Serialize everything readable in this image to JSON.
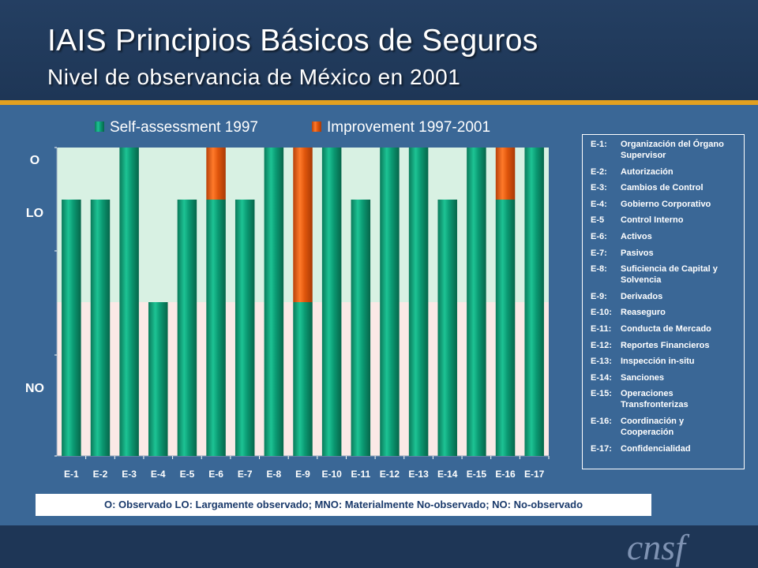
{
  "header": {
    "title": "IAIS Principios Básicos de Seguros",
    "subtitle": "Nivel de observancia de México en 2001"
  },
  "chart_data": {
    "type": "bar",
    "stacked": true,
    "categories": [
      "E-1",
      "E-2",
      "E-3",
      "E-4",
      "E-5",
      "E-6",
      "E-7",
      "E-8",
      "E-9",
      "E-10",
      "E-11",
      "E-12",
      "E-13",
      "E-14",
      "E-15",
      "E-16",
      "E-17"
    ],
    "series": [
      {
        "name": "Self-assessment 1997",
        "color": "#0b9a73",
        "values": [
          2,
          2,
          3,
          1,
          2,
          2,
          2,
          3,
          1,
          3,
          2,
          3,
          3,
          2,
          3,
          2,
          3
        ]
      },
      {
        "name": "Improvement 1997-2001",
        "color": "#e0560c",
        "values": [
          0,
          0,
          0,
          0,
          0,
          1,
          0,
          0,
          2,
          0,
          0,
          0,
          0,
          0,
          0,
          1,
          0
        ]
      }
    ],
    "y_levels": [
      "NO",
      "LO",
      "O"
    ],
    "ylim": [
      0,
      3
    ],
    "legend": "top",
    "grid": false
  },
  "principles_legend": [
    {
      "code": "E-1:",
      "label": "Organización del Órgano Supervisor"
    },
    {
      "code": "E-2:",
      "label": "Autorización"
    },
    {
      "code": "E-3:",
      "label": "Cambios de Control"
    },
    {
      "code": "E-4:",
      "label": "Gobierno Corporativo"
    },
    {
      "code": "E-5",
      "label": "Control Interno"
    },
    {
      "code": "E-6:",
      "label": "Activos"
    },
    {
      "code": "E-7:",
      "label": "Pasivos"
    },
    {
      "code": "E-8:",
      "label": "Suficiencia de Capital y Solvencia"
    },
    {
      "code": "E-9:",
      "label": "Derivados"
    },
    {
      "code": "E-10:",
      "label": "Reaseguro"
    },
    {
      "code": "E-11:",
      "label": "Conducta de Mercado"
    },
    {
      "code": "E-12:",
      "label": "Reportes Financieros"
    },
    {
      "code": "E-13:",
      "label": "Inspección in-situ"
    },
    {
      "code": "E-14:",
      "label": "Sanciones"
    },
    {
      "code": "E-15:",
      "label": "Operaciones Transfronterizas"
    },
    {
      "code": "E-16:",
      "label": "Coordinación y Cooperación"
    },
    {
      "code": "E-17:",
      "label": "Confidencialidad"
    }
  ],
  "footnote": "O: Observado  LO: Largamente observado;  MNO: Materialmente No-observado;  NO: No-observado",
  "logo_text": "cnsf"
}
